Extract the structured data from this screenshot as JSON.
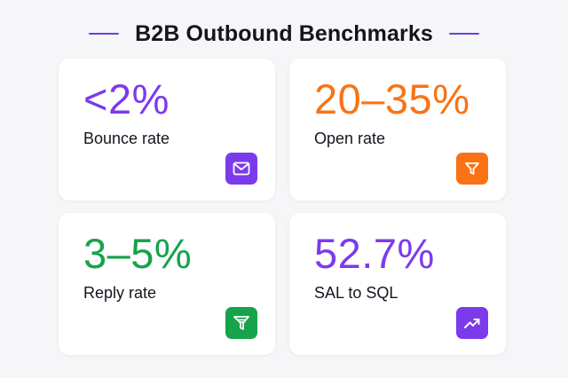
{
  "title": "B2B Outbound Benchmarks",
  "colors": {
    "purple": "#7c3aed",
    "orange": "#f97316",
    "green": "#16a34a",
    "accent_line": "#6b3fd6"
  },
  "cards": [
    {
      "value": "<2%",
      "label": "Bounce rate",
      "color": "#7c3aed",
      "icon": "mail-icon"
    },
    {
      "value": "20–35%",
      "label": "Open rate",
      "color": "#f97316",
      "icon": "funnel-icon"
    },
    {
      "value": "3–5%",
      "label": "Reply rate",
      "color": "#16a34a",
      "icon": "reply-funnel-icon"
    },
    {
      "value": "52.7%",
      "label": "SAL to SQL",
      "color": "#7c3aed",
      "icon": "trending-up-icon"
    }
  ]
}
